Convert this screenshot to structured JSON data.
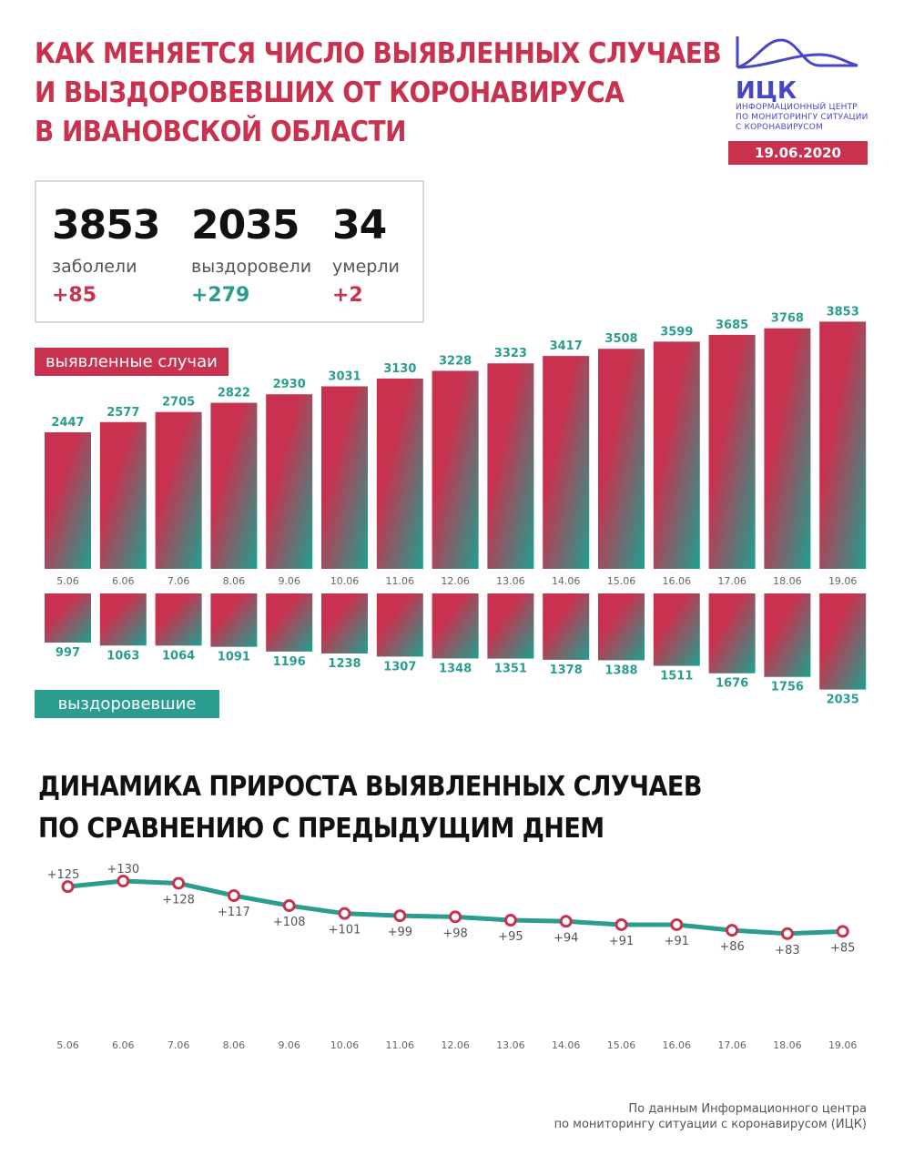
{
  "header": {
    "title_lines": [
      "КАК МЕНЯЕТСЯ ЧИСЛО ВЫЯВЛЕННЫХ СЛУЧАЕВ",
      "И ВЫЗДОРОВЕВШИХ ОТ КОРОНАВИРУСА",
      "В ИВАНОВСКОЙ ОБЛАСТИ"
    ],
    "logo_name": "ИЦК",
    "logo_text_lines": [
      "ИНФОРМАЦИОННЫЙ ЦЕНТР",
      "ПО МОНИТОРИНГУ СИТУАЦИИ",
      "С КОРОНАВИРУСОМ"
    ],
    "date": "19.06.2020"
  },
  "colors": {
    "red": "#c8324f",
    "teal": "#2a9d8f",
    "logo_blue": "#4747c4"
  },
  "stats": [
    {
      "value": "3853",
      "label": "заболели",
      "delta": "+85",
      "color": "#c8324f"
    },
    {
      "value": "2035",
      "label": "выздоровели",
      "delta": "+279",
      "color": "#2a9d8f"
    },
    {
      "value": "34",
      "label": "умерли",
      "delta": "+2",
      "color": "#c8324f"
    }
  ],
  "labels": {
    "cases": "выявленные случаи",
    "recovered": "выздоровевшие"
  },
  "section2_title_lines": [
    "ДИНАМИКА ПРИРОСТА ВЫЯВЛЕННЫХ СЛУЧАЕВ",
    "ПО СРАВНЕНИЮ С ПРЕДЫДУЩИМ ДНЕМ"
  ],
  "footer_lines": [
    "По данным Информационного центра",
    "по мониторингу ситуации с коронавирусом (ИЦК)"
  ],
  "chart_data": [
    {
      "type": "bar",
      "categories": [
        "5.06",
        "6.06",
        "7.06",
        "8.06",
        "9.06",
        "10.06",
        "11.06",
        "12.06",
        "13.06",
        "14.06",
        "15.06",
        "16.06",
        "17.06",
        "18.06",
        "19.06"
      ],
      "series": [
        {
          "name": "выявленные случаи",
          "values": [
            2447,
            2577,
            2705,
            2822,
            2930,
            3031,
            3130,
            3228,
            3323,
            3417,
            3508,
            3599,
            3685,
            3768,
            3853
          ]
        },
        {
          "name": "выздоровевшие",
          "values": [
            997,
            1063,
            1064,
            1091,
            1196,
            1238,
            1307,
            1348,
            1351,
            1378,
            1388,
            1511,
            1676,
            1756,
            2035
          ]
        }
      ]
    },
    {
      "type": "line",
      "categories": [
        "5.06",
        "6.06",
        "7.06",
        "8.06",
        "9.06",
        "10.06",
        "11.06",
        "12.06",
        "13.06",
        "14.06",
        "15.06",
        "16.06",
        "17.06",
        "18.06",
        "19.06"
      ],
      "values": [
        125,
        130,
        128,
        117,
        108,
        101,
        99,
        98,
        95,
        94,
        91,
        91,
        86,
        83,
        85
      ],
      "value_labels": [
        "+125",
        "+130",
        "+128",
        "+117",
        "+108",
        "+101",
        "+99",
        "+98",
        "+95",
        "+94",
        "+91",
        "+91",
        "+86",
        "+83",
        "+85"
      ]
    }
  ]
}
